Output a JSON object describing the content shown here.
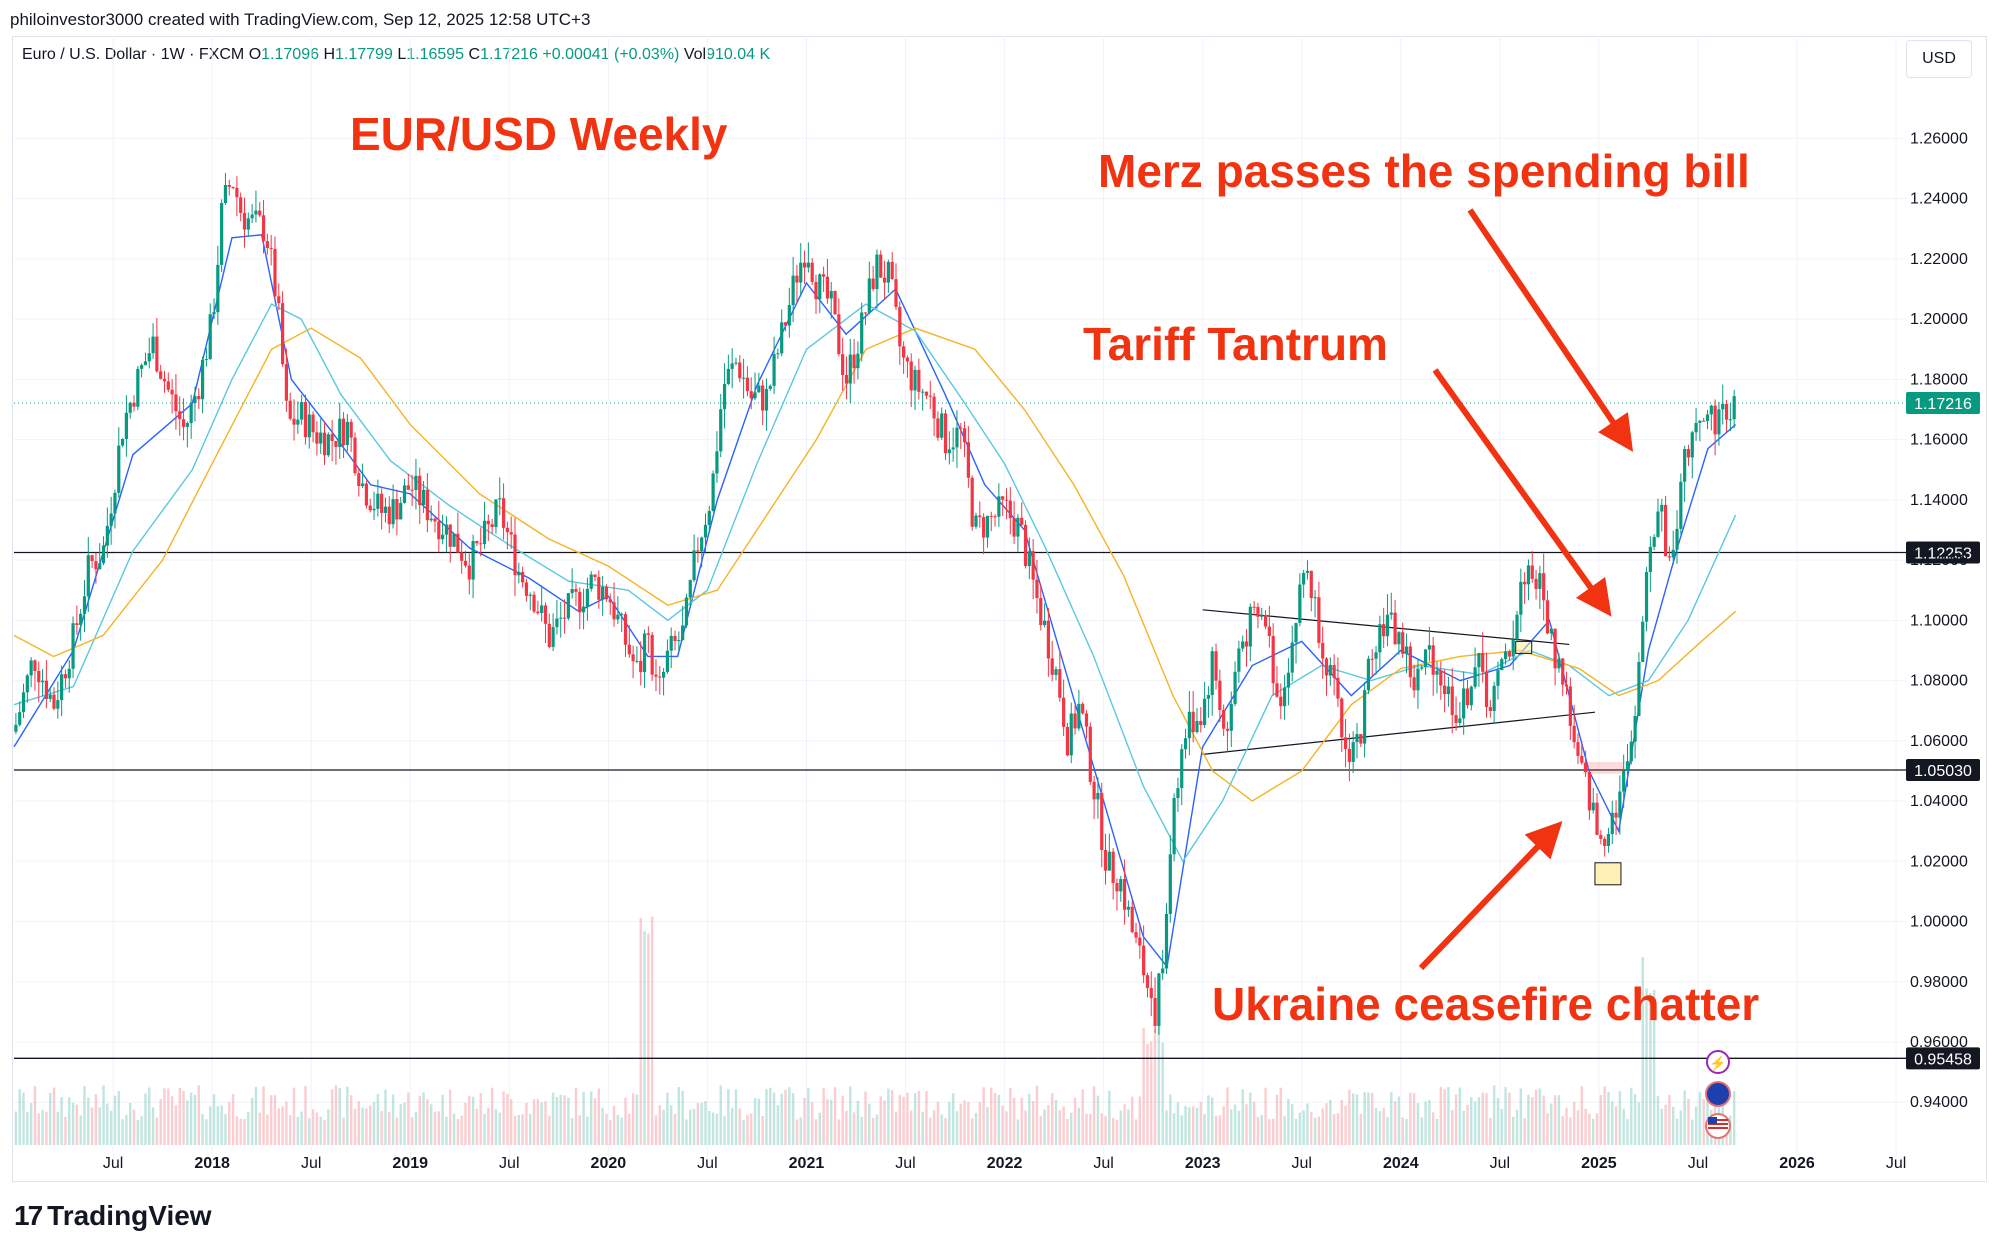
{
  "header": {
    "attribution": "philoinvestor3000 created with TradingView.com, Sep 12, 2025 12:58 UTC+3"
  },
  "legend": {
    "symbol": "Euro / U.S. Dollar · 1W · FXCM",
    "o_label": "O",
    "o_value": "1.17096",
    "h_label": "H",
    "h_value": "1.17799",
    "l_label": "L",
    "l_value": "1.16595",
    "c_label": "C",
    "c_value": "1.17216",
    "change": "+0.00041 (+0.03%)",
    "vol_label": "Vol",
    "vol_value": "910.04 K"
  },
  "currency_button": "USD",
  "footer": {
    "brand": "TradingView",
    "logo_mark": "17"
  },
  "colors": {
    "up": "#089981",
    "down": "#f23645",
    "ma_fast": "#2962ff",
    "ma_mid": "#5bc8e0",
    "ma_slow": "#f5b324",
    "annotation": "#f23312",
    "hline": "#131722",
    "price_tag": "#089981"
  },
  "icons": [
    "lightning-icon",
    "globe-icon",
    "us-flag-icon"
  ],
  "chart_data": {
    "type": "candlestick",
    "title": "EUR/USD Weekly",
    "x_tick_labels": [
      "Jul",
      "2018",
      "Jul",
      "2019",
      "Jul",
      "2020",
      "Jul",
      "2021",
      "Jul",
      "2022",
      "Jul",
      "2023",
      "Jul",
      "2024",
      "Jul",
      "2025",
      "Jul",
      "2026",
      "Jul"
    ],
    "x_tick_dates": [
      2017.5,
      2018.0,
      2018.5,
      2019.0,
      2019.5,
      2020.0,
      2020.5,
      2021.0,
      2021.5,
      2022.0,
      2022.5,
      2023.0,
      2023.5,
      2024.0,
      2024.5,
      2025.0,
      2025.5,
      2026.0,
      2026.5
    ],
    "y_tick_labels": [
      "1.26000",
      "1.24000",
      "1.22000",
      "1.20000",
      "1.18000",
      "1.16000",
      "1.14000",
      "1.12000",
      "1.10000",
      "1.08000",
      "1.06000",
      "1.04000",
      "1.02000",
      "1.00000",
      "0.98000",
      "0.96000",
      "0.94000"
    ],
    "ylim": [
      0.9258,
      1.2794
    ],
    "xlim": [
      2017.0,
      2026.55
    ],
    "last_price": "1.17216",
    "horizontal_levels": [
      {
        "value": 1.12253,
        "label": "1.12253"
      },
      {
        "value": 1.0503,
        "label": "1.05030"
      },
      {
        "value": 0.95458,
        "label": "0.95458"
      }
    ],
    "price_path": [
      [
        2017.0,
        1.063
      ],
      [
        2017.1,
        1.088
      ],
      [
        2017.2,
        1.072
      ],
      [
        2017.3,
        1.094
      ],
      [
        2017.38,
        1.118
      ],
      [
        2017.45,
        1.123
      ],
      [
        2017.55,
        1.165
      ],
      [
        2017.63,
        1.181
      ],
      [
        2017.7,
        1.192
      ],
      [
        2017.78,
        1.176
      ],
      [
        2017.86,
        1.163
      ],
      [
        2017.93,
        1.178
      ],
      [
        2018.0,
        1.199
      ],
      [
        2018.05,
        1.236
      ],
      [
        2018.1,
        1.247
      ],
      [
        2018.15,
        1.235
      ],
      [
        2018.2,
        1.232
      ],
      [
        2018.27,
        1.23
      ],
      [
        2018.33,
        1.205
      ],
      [
        2018.38,
        1.165
      ],
      [
        2018.45,
        1.168
      ],
      [
        2018.52,
        1.162
      ],
      [
        2018.6,
        1.16
      ],
      [
        2018.68,
        1.165
      ],
      [
        2018.76,
        1.145
      ],
      [
        2018.85,
        1.136
      ],
      [
        2018.92,
        1.137
      ],
      [
        2019.0,
        1.145
      ],
      [
        2019.1,
        1.136
      ],
      [
        2019.2,
        1.129
      ],
      [
        2019.3,
        1.119
      ],
      [
        2019.38,
        1.128
      ],
      [
        2019.45,
        1.137
      ],
      [
        2019.55,
        1.116
      ],
      [
        2019.62,
        1.109
      ],
      [
        2019.7,
        1.094
      ],
      [
        2019.78,
        1.102
      ],
      [
        2019.85,
        1.107
      ],
      [
        2019.92,
        1.113
      ],
      [
        2020.0,
        1.109
      ],
      [
        2020.08,
        1.094
      ],
      [
        2020.15,
        1.082
      ],
      [
        2020.2,
        1.095
      ],
      [
        2020.25,
        1.074
      ],
      [
        2020.3,
        1.088
      ],
      [
        2020.38,
        1.096
      ],
      [
        2020.45,
        1.125
      ],
      [
        2020.52,
        1.142
      ],
      [
        2020.58,
        1.178
      ],
      [
        2020.65,
        1.186
      ],
      [
        2020.72,
        1.174
      ],
      [
        2020.8,
        1.174
      ],
      [
        2020.87,
        1.193
      ],
      [
        2020.95,
        1.215
      ],
      [
        2021.0,
        1.225
      ],
      [
        2021.05,
        1.212
      ],
      [
        2021.12,
        1.205
      ],
      [
        2021.2,
        1.18
      ],
      [
        2021.27,
        1.195
      ],
      [
        2021.35,
        1.218
      ],
      [
        2021.42,
        1.213
      ],
      [
        2021.48,
        1.187
      ],
      [
        2021.55,
        1.178
      ],
      [
        2021.62,
        1.174
      ],
      [
        2021.7,
        1.16
      ],
      [
        2021.78,
        1.162
      ],
      [
        2021.85,
        1.13
      ],
      [
        2021.92,
        1.133
      ],
      [
        2022.0,
        1.137
      ],
      [
        2022.08,
        1.13
      ],
      [
        2022.15,
        1.11
      ],
      [
        2022.2,
        1.098
      ],
      [
        2022.27,
        1.08
      ],
      [
        2022.32,
        1.06
      ],
      [
        2022.38,
        1.072
      ],
      [
        2022.45,
        1.045
      ],
      [
        2022.52,
        1.018
      ],
      [
        2022.58,
        1.015
      ],
      [
        2022.65,
        0.995
      ],
      [
        2022.72,
        0.98
      ],
      [
        2022.76,
        0.971
      ],
      [
        2022.8,
        0.985
      ],
      [
        2022.85,
        1.04
      ],
      [
        2022.92,
        1.065
      ],
      [
        2023.0,
        1.07
      ],
      [
        2023.05,
        1.087
      ],
      [
        2023.12,
        1.06
      ],
      [
        2023.18,
        1.09
      ],
      [
        2023.25,
        1.1
      ],
      [
        2023.32,
        1.1
      ],
      [
        2023.38,
        1.072
      ],
      [
        2023.45,
        1.092
      ],
      [
        2023.52,
        1.12
      ],
      [
        2023.58,
        1.1
      ],
      [
        2023.65,
        1.08
      ],
      [
        2023.72,
        1.056
      ],
      [
        2023.8,
        1.062
      ],
      [
        2023.85,
        1.092
      ],
      [
        2023.92,
        1.1
      ],
      [
        2024.0,
        1.094
      ],
      [
        2024.07,
        1.078
      ],
      [
        2024.15,
        1.09
      ],
      [
        2024.22,
        1.078
      ],
      [
        2024.3,
        1.068
      ],
      [
        2024.38,
        1.087
      ],
      [
        2024.45,
        1.072
      ],
      [
        2024.52,
        1.085
      ],
      [
        2024.58,
        1.1
      ],
      [
        2024.63,
        1.118
      ],
      [
        2024.7,
        1.112
      ],
      [
        2024.77,
        1.09
      ],
      [
        2024.83,
        1.08
      ],
      [
        2024.88,
        1.055
      ],
      [
        2024.95,
        1.042
      ],
      [
        2025.0,
        1.026
      ],
      [
        2025.04,
        1.032
      ],
      [
        2025.1,
        1.041
      ],
      [
        2025.15,
        1.052
      ],
      [
        2025.2,
        1.085
      ],
      [
        2025.25,
        1.125
      ],
      [
        2025.3,
        1.14
      ],
      [
        2025.35,
        1.118
      ],
      [
        2025.4,
        1.138
      ],
      [
        2025.45,
        1.158
      ],
      [
        2025.5,
        1.171
      ],
      [
        2025.55,
        1.167
      ],
      [
        2025.62,
        1.168
      ],
      [
        2025.69,
        1.17216
      ]
    ],
    "moving_averages": [
      {
        "key": "ma_fast",
        "points": [
          [
            2017.0,
            1.058
          ],
          [
            2017.3,
            1.09
          ],
          [
            2017.6,
            1.155
          ],
          [
            2017.9,
            1.172
          ],
          [
            2018.1,
            1.227
          ],
          [
            2018.25,
            1.228
          ],
          [
            2018.4,
            1.18
          ],
          [
            2018.6,
            1.163
          ],
          [
            2018.8,
            1.145
          ],
          [
            2019.0,
            1.142
          ],
          [
            2019.3,
            1.124
          ],
          [
            2019.6,
            1.114
          ],
          [
            2019.85,
            1.103
          ],
          [
            2020.0,
            1.108
          ],
          [
            2020.2,
            1.088
          ],
          [
            2020.35,
            1.088
          ],
          [
            2020.55,
            1.14
          ],
          [
            2020.75,
            1.178
          ],
          [
            2021.0,
            1.212
          ],
          [
            2021.2,
            1.195
          ],
          [
            2021.45,
            1.21
          ],
          [
            2021.7,
            1.175
          ],
          [
            2021.9,
            1.145
          ],
          [
            2022.1,
            1.13
          ],
          [
            2022.3,
            1.085
          ],
          [
            2022.5,
            1.04
          ],
          [
            2022.7,
            0.995
          ],
          [
            2022.82,
            0.985
          ],
          [
            2023.0,
            1.058
          ],
          [
            2023.25,
            1.085
          ],
          [
            2023.5,
            1.093
          ],
          [
            2023.75,
            1.075
          ],
          [
            2024.0,
            1.09
          ],
          [
            2024.3,
            1.08
          ],
          [
            2024.55,
            1.085
          ],
          [
            2024.75,
            1.1
          ],
          [
            2024.95,
            1.05
          ],
          [
            2025.1,
            1.03
          ],
          [
            2025.25,
            1.09
          ],
          [
            2025.4,
            1.125
          ],
          [
            2025.55,
            1.157
          ],
          [
            2025.69,
            1.165
          ]
        ]
      },
      {
        "key": "ma_mid",
        "points": [
          [
            2017.0,
            1.072
          ],
          [
            2017.3,
            1.078
          ],
          [
            2017.6,
            1.123
          ],
          [
            2017.9,
            1.15
          ],
          [
            2018.1,
            1.18
          ],
          [
            2018.3,
            1.205
          ],
          [
            2018.45,
            1.2
          ],
          [
            2018.65,
            1.175
          ],
          [
            2018.9,
            1.153
          ],
          [
            2019.2,
            1.138
          ],
          [
            2019.5,
            1.125
          ],
          [
            2019.8,
            1.113
          ],
          [
            2020.1,
            1.11
          ],
          [
            2020.3,
            1.1
          ],
          [
            2020.5,
            1.11
          ],
          [
            2020.75,
            1.152
          ],
          [
            2021.0,
            1.19
          ],
          [
            2021.3,
            1.205
          ],
          [
            2021.55,
            1.196
          ],
          [
            2021.8,
            1.172
          ],
          [
            2022.0,
            1.152
          ],
          [
            2022.2,
            1.125
          ],
          [
            2022.45,
            1.088
          ],
          [
            2022.7,
            1.045
          ],
          [
            2022.9,
            1.02
          ],
          [
            2023.1,
            1.04
          ],
          [
            2023.35,
            1.075
          ],
          [
            2023.6,
            1.085
          ],
          [
            2023.85,
            1.08
          ],
          [
            2024.1,
            1.085
          ],
          [
            2024.4,
            1.082
          ],
          [
            2024.65,
            1.09
          ],
          [
            2024.85,
            1.085
          ],
          [
            2025.05,
            1.075
          ],
          [
            2025.25,
            1.08
          ],
          [
            2025.45,
            1.1
          ],
          [
            2025.69,
            1.135
          ]
        ]
      },
      {
        "key": "ma_slow",
        "points": [
          [
            2017.0,
            1.095
          ],
          [
            2017.2,
            1.088
          ],
          [
            2017.45,
            1.095
          ],
          [
            2017.75,
            1.12
          ],
          [
            2018.0,
            1.152
          ],
          [
            2018.3,
            1.19
          ],
          [
            2018.5,
            1.197
          ],
          [
            2018.75,
            1.187
          ],
          [
            2019.0,
            1.165
          ],
          [
            2019.35,
            1.142
          ],
          [
            2019.7,
            1.127
          ],
          [
            2020.0,
            1.118
          ],
          [
            2020.3,
            1.105
          ],
          [
            2020.55,
            1.11
          ],
          [
            2020.8,
            1.135
          ],
          [
            2021.05,
            1.16
          ],
          [
            2021.3,
            1.19
          ],
          [
            2021.55,
            1.197
          ],
          [
            2021.85,
            1.19
          ],
          [
            2022.1,
            1.17
          ],
          [
            2022.35,
            1.145
          ],
          [
            2022.6,
            1.115
          ],
          [
            2022.85,
            1.075
          ],
          [
            2023.05,
            1.05
          ],
          [
            2023.25,
            1.04
          ],
          [
            2023.5,
            1.05
          ],
          [
            2023.75,
            1.072
          ],
          [
            2024.0,
            1.084
          ],
          [
            2024.3,
            1.088
          ],
          [
            2024.6,
            1.09
          ],
          [
            2024.9,
            1.084
          ],
          [
            2025.1,
            1.075
          ],
          [
            2025.3,
            1.08
          ],
          [
            2025.5,
            1.092
          ],
          [
            2025.69,
            1.103
          ]
        ]
      }
    ],
    "trendlines": [
      {
        "from": [
          2023.0,
          1.1035
        ],
        "to": [
          2024.85,
          1.092
        ]
      },
      {
        "from": [
          2023.0,
          1.0555
        ],
        "to": [
          2024.98,
          1.0695
        ]
      }
    ],
    "annotations": [
      {
        "text": "EUR/USD Weekly"
      },
      {
        "text": "Merz passes the spending bill"
      },
      {
        "text": "Tariff Tantrum"
      },
      {
        "text": "Ukraine ceasefire chatter"
      }
    ],
    "volume": {
      "label": "Vol",
      "last": "910.04 K"
    }
  }
}
